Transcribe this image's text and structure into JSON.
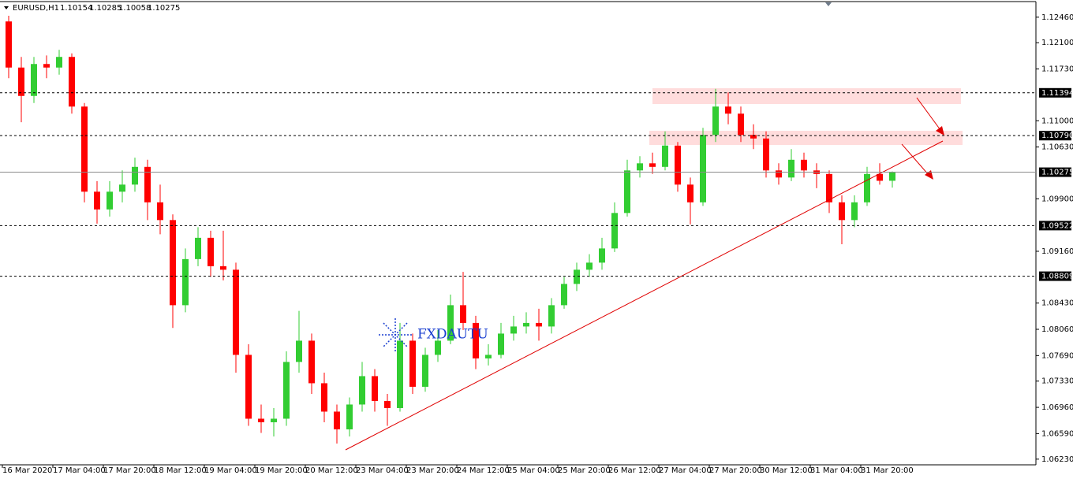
{
  "chart_data": {
    "type": "candlestick",
    "symbol": "EURUSD,H1",
    "watermark": "FXDAUTU",
    "up_color": "#32cd32",
    "down_color": "#ff0000",
    "categories": [
      "16 Mar 2020",
      null,
      null,
      null,
      "17 Mar 04:00",
      null,
      null,
      null,
      "17 Mar 20:00",
      null,
      null,
      null,
      "18 Mar 12:00",
      null,
      null,
      null,
      "19 Mar 04:00",
      null,
      null,
      null,
      "19 Mar 20:00",
      null,
      null,
      null,
      "20 Mar 12:00",
      null,
      null,
      null,
      "23 Mar 04:00",
      null,
      null,
      null,
      "23 Mar 20:00",
      null,
      null,
      null,
      "24 Mar 12:00",
      null,
      null,
      null,
      "25 Mar 04:00",
      null,
      null,
      null,
      "25 Mar 20:00",
      null,
      null,
      null,
      "26 Mar 12:00",
      null,
      null,
      null,
      "27 Mar 04:00",
      null,
      null,
      null,
      "27 Mar 20:00",
      null,
      null,
      null,
      "30 Mar 12:00",
      null,
      null,
      null,
      "31 Mar 04:00",
      null,
      null,
      null,
      "31 Mar 20:00",
      null,
      null
    ],
    "open": [
      1.124,
      1.1175,
      1.1135,
      1.118,
      1.1175,
      1.119,
      1.112,
      1.1,
      1.0975,
      1.1,
      1.101,
      1.1035,
      1.0985,
      1.096,
      1.084,
      1.0905,
      1.0935,
      1.0895,
      1.089,
      1.077,
      1.068,
      1.0675,
      1.068,
      1.076,
      1.079,
      1.073,
      1.069,
      1.0665,
      1.07,
      1.074,
      1.0705,
      1.0695,
      1.079,
      1.0725,
      1.077,
      1.079,
      1.084,
      1.0815,
      1.0765,
      1.077,
      1.08,
      1.081,
      1.0815,
      1.081,
      1.084,
      1.087,
      1.089,
      1.09,
      1.092,
      1.097,
      1.103,
      1.104,
      1.1035,
      1.1065,
      1.101,
      1.0985,
      1.108,
      1.112,
      1.111,
      1.108,
      1.1075,
      1.103,
      1.102,
      1.1045,
      1.103,
      1.1025,
      1.0985,
      1.096,
      1.0985,
      1.1025,
      1.10154
    ],
    "high": [
      1.1248,
      1.119,
      1.119,
      1.1192,
      1.12,
      1.1195,
      1.1125,
      1.1015,
      1.1015,
      1.103,
      1.1048,
      1.1045,
      1.101,
      1.0968,
      1.092,
      1.095,
      1.0945,
      1.0945,
      1.09,
      1.0785,
      1.07,
      1.0695,
      1.0775,
      1.0832,
      1.08,
      1.0745,
      1.07,
      1.071,
      1.076,
      1.075,
      1.0715,
      1.0815,
      1.08,
      1.078,
      1.0805,
      1.0855,
      1.0887,
      1.0825,
      1.0785,
      1.0815,
      1.0825,
      1.083,
      1.0835,
      1.085,
      1.088,
      1.09,
      1.0912,
      1.0935,
      1.0985,
      1.1045,
      1.105,
      1.1055,
      1.1085,
      1.107,
      1.102,
      1.109,
      1.1145,
      1.114,
      1.112,
      1.1095,
      1.1085,
      1.104,
      1.106,
      1.1055,
      1.104,
      1.103,
      1.0995,
      1.0995,
      1.1035,
      1.104,
      1.10285
    ],
    "low": [
      1.116,
      1.1098,
      1.1125,
      1.116,
      1.1165,
      1.111,
      1.0985,
      1.0955,
      1.0965,
      1.0985,
      1.1,
      1.096,
      1.094,
      1.0808,
      1.083,
      1.0895,
      1.088,
      1.0875,
      1.0745,
      1.067,
      1.066,
      1.0655,
      1.067,
      1.0745,
      1.0715,
      1.0675,
      1.0645,
      1.0655,
      1.069,
      1.069,
      1.067,
      1.069,
      1.0715,
      1.0718,
      1.076,
      1.0785,
      1.0805,
      1.075,
      1.0755,
      1.0765,
      1.079,
      1.08,
      1.079,
      1.08,
      1.0835,
      1.086,
      1.088,
      1.089,
      1.0915,
      1.0965,
      1.102,
      1.1025,
      1.103,
      1.1,
      1.0954,
      1.098,
      1.107,
      1.1095,
      1.107,
      1.106,
      1.102,
      1.101,
      1.1015,
      1.102,
      1.1005,
      1.097,
      1.0926,
      1.095,
      1.098,
      1.101,
      1.10058
    ],
    "close": [
      1.1175,
      1.1135,
      1.118,
      1.1175,
      1.119,
      1.112,
      1.1,
      1.0975,
      1.1,
      1.101,
      1.1035,
      1.0985,
      1.096,
      1.084,
      1.0905,
      1.0935,
      1.0895,
      1.089,
      1.077,
      1.068,
      1.0675,
      1.068,
      1.076,
      1.079,
      1.073,
      1.069,
      1.0665,
      1.07,
      1.074,
      1.0705,
      1.0695,
      1.079,
      1.0725,
      1.077,
      1.079,
      1.084,
      1.0815,
      1.0765,
      1.077,
      1.08,
      1.081,
      1.0815,
      1.081,
      1.084,
      1.087,
      1.089,
      1.09,
      1.092,
      1.097,
      1.103,
      1.104,
      1.1035,
      1.1065,
      1.101,
      1.0985,
      1.108,
      1.112,
      1.111,
      1.108,
      1.1075,
      1.103,
      1.102,
      1.1045,
      1.103,
      1.1025,
      1.0985,
      1.096,
      1.0985,
      1.1025,
      1.10154,
      1.10275
    ],
    "ylim": [
      1.0615,
      1.1268
    ],
    "yticks": [
      {
        "value": 1.1246,
        "label": "1.12460"
      },
      {
        "value": 1.121,
        "label": "1.12100"
      },
      {
        "value": 1.1173,
        "label": "1.11730"
      },
      {
        "value": 1.11,
        "label": "1.11000"
      },
      {
        "value": 1.1063,
        "label": "1.10630"
      },
      {
        "value": 1.099,
        "label": "1.09900"
      },
      {
        "value": 1.0916,
        "label": "1.09160"
      },
      {
        "value": 1.0843,
        "label": "1.08430"
      },
      {
        "value": 1.0806,
        "label": "1.08060"
      },
      {
        "value": 1.0769,
        "label": "1.07690"
      },
      {
        "value": 1.0733,
        "label": "1.07330"
      },
      {
        "value": 1.0696,
        "label": "1.06960"
      },
      {
        "value": 1.0659,
        "label": "1.06590"
      },
      {
        "value": 1.0623,
        "label": "1.06230"
      }
    ],
    "price_lines": [
      1.11394,
      {
        "value": 1.1079,
        "label": "1.10790"
      },
      1.09522,
      1.08809
    ]
  }
}
